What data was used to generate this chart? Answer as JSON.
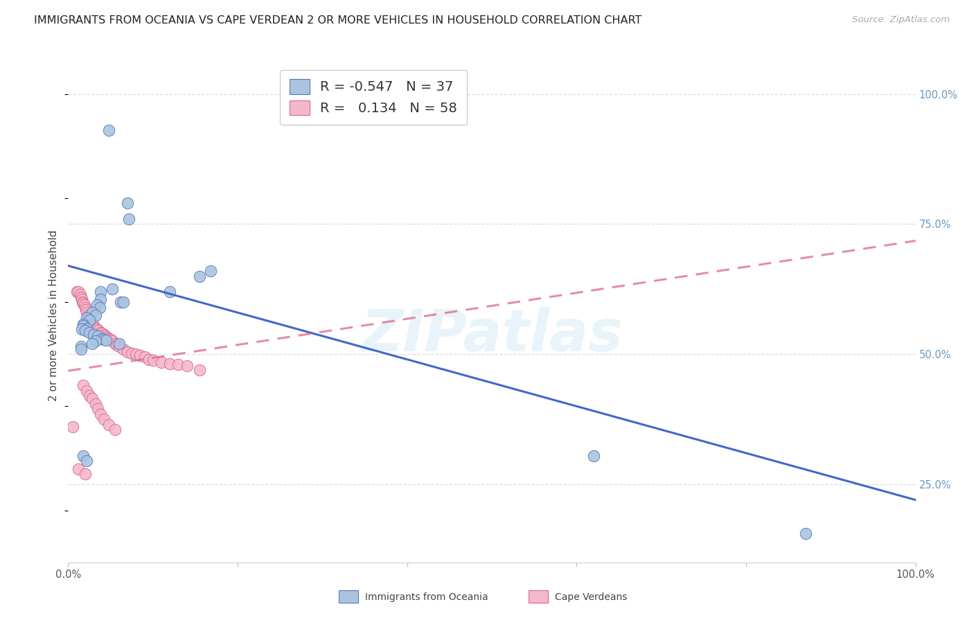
{
  "title": "IMMIGRANTS FROM OCEANIA VS CAPE VERDEAN 2 OR MORE VEHICLES IN HOUSEHOLD CORRELATION CHART",
  "source": "Source: ZipAtlas.com",
  "ylabel": "2 or more Vehicles in Household",
  "legend_blue_r": "-0.547",
  "legend_blue_n": "37",
  "legend_pink_r": "0.134",
  "legend_pink_n": "58",
  "legend_blue_label": "Immigrants from Oceania",
  "legend_pink_label": "Cape Verdeans",
  "blue_scatter_x": [
    0.048,
    0.052,
    0.038,
    0.038,
    0.062,
    0.065,
    0.034,
    0.037,
    0.028,
    0.032,
    0.022,
    0.025,
    0.018,
    0.018,
    0.022,
    0.016,
    0.02,
    0.025,
    0.03,
    0.035,
    0.04,
    0.042,
    0.045,
    0.032,
    0.028,
    0.06,
    0.07,
    0.072,
    0.168,
    0.155,
    0.12,
    0.015,
    0.015,
    0.018,
    0.022,
    0.62,
    0.87
  ],
  "blue_scatter_y": [
    0.93,
    0.625,
    0.62,
    0.605,
    0.6,
    0.6,
    0.595,
    0.59,
    0.58,
    0.575,
    0.57,
    0.565,
    0.558,
    0.555,
    0.55,
    0.548,
    0.545,
    0.542,
    0.538,
    0.535,
    0.53,
    0.528,
    0.527,
    0.525,
    0.52,
    0.52,
    0.79,
    0.76,
    0.66,
    0.65,
    0.62,
    0.515,
    0.51,
    0.305,
    0.295,
    0.305,
    0.155
  ],
  "pink_scatter_x": [
    0.005,
    0.01,
    0.012,
    0.014,
    0.015,
    0.016,
    0.017,
    0.018,
    0.019,
    0.02,
    0.021,
    0.022,
    0.023,
    0.024,
    0.025,
    0.026,
    0.027,
    0.028,
    0.03,
    0.032,
    0.034,
    0.036,
    0.038,
    0.04,
    0.042,
    0.044,
    0.046,
    0.048,
    0.05,
    0.052,
    0.055,
    0.058,
    0.06,
    0.065,
    0.07,
    0.075,
    0.08,
    0.085,
    0.09,
    0.095,
    0.1,
    0.11,
    0.12,
    0.13,
    0.14,
    0.155,
    0.018,
    0.022,
    0.025,
    0.028,
    0.032,
    0.035,
    0.038,
    0.042,
    0.048,
    0.055,
    0.012,
    0.02
  ],
  "pink_scatter_y": [
    0.36,
    0.62,
    0.62,
    0.615,
    0.61,
    0.605,
    0.6,
    0.598,
    0.595,
    0.59,
    0.585,
    0.58,
    0.575,
    0.572,
    0.57,
    0.568,
    0.565,
    0.56,
    0.555,
    0.55,
    0.548,
    0.545,
    0.542,
    0.54,
    0.538,
    0.535,
    0.532,
    0.53,
    0.528,
    0.525,
    0.52,
    0.518,
    0.515,
    0.51,
    0.505,
    0.502,
    0.5,
    0.498,
    0.495,
    0.49,
    0.488,
    0.485,
    0.482,
    0.48,
    0.478,
    0.47,
    0.44,
    0.43,
    0.42,
    0.415,
    0.405,
    0.395,
    0.385,
    0.375,
    0.365,
    0.355,
    0.28,
    0.27
  ],
  "blue_line_x": [
    0.0,
    1.0
  ],
  "blue_line_y": [
    0.67,
    0.22
  ],
  "pink_line_x": [
    0.0,
    1.0
  ],
  "pink_line_y": [
    0.468,
    0.718
  ],
  "xlim": [
    0.0,
    1.0
  ],
  "ylim": [
    0.1,
    1.05
  ],
  "background_color": "#ffffff",
  "blue_color": "#aac4e0",
  "pink_color": "#f4b8cc",
  "blue_edge_color": "#5577bb",
  "pink_edge_color": "#dd6688",
  "blue_line_color": "#4466cc",
  "pink_line_color": "#dd6688",
  "grid_color": "#dddddd",
  "title_fontsize": 11.5,
  "source_fontsize": 9.5,
  "ylabel_fontsize": 11,
  "tick_fontsize": 10.5,
  "legend_fontsize": 14
}
